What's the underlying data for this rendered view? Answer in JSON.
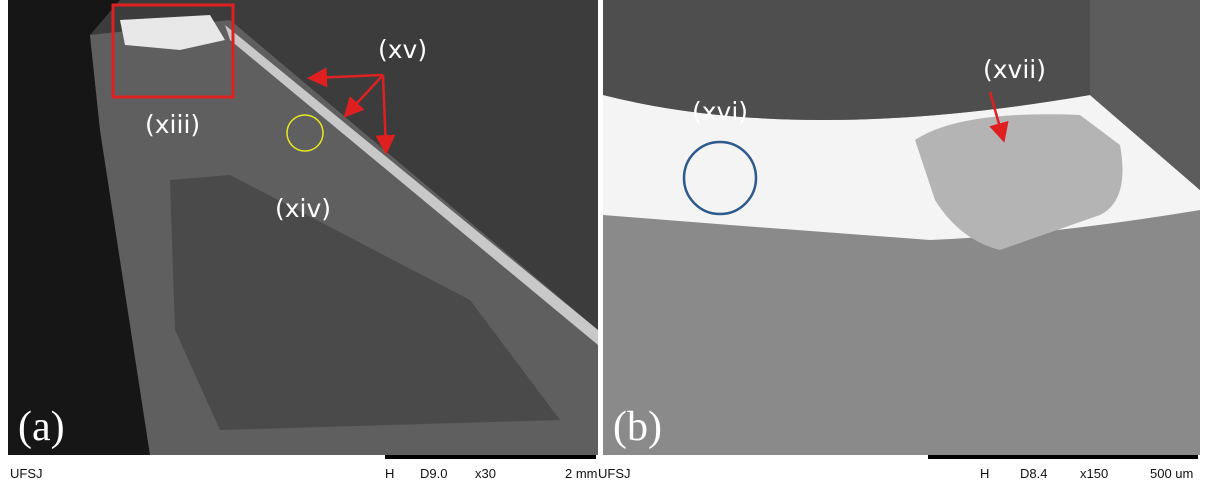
{
  "panels": [
    {
      "label": "(a)",
      "annotations": [
        "(xiii)",
        "(xiv)",
        "(xv)"
      ],
      "footer": {
        "org": "UFSJ",
        "mode": "H",
        "wd": "D9.0",
        "mag": "x30",
        "scale": "2 mm"
      }
    },
    {
      "label": "(b)",
      "annotations": [
        "(xvi)",
        "(xvii)"
      ],
      "footer": {
        "org": "UFSJ",
        "mode": "H",
        "wd": "D8.4",
        "mag": "x150",
        "scale": "500 um"
      }
    }
  ]
}
